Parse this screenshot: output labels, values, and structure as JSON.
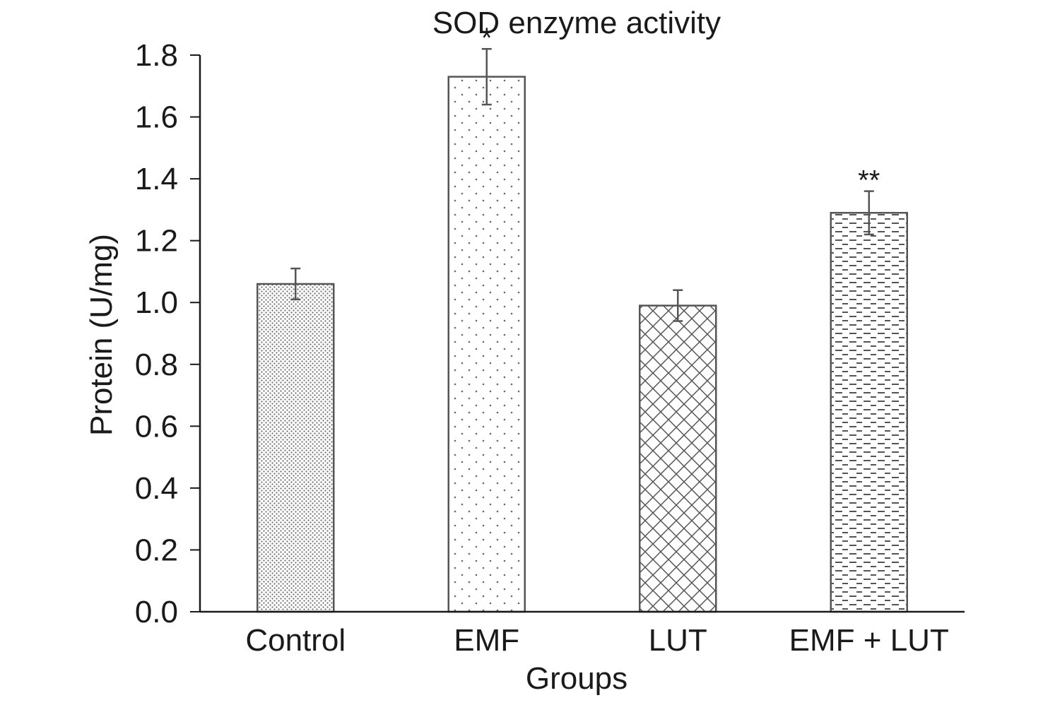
{
  "chart_data": {
    "type": "bar",
    "title": "SOD enzyme activity",
    "xlabel": "Groups",
    "ylabel": "Protein (U/mg)",
    "ylim": [
      0,
      1.8
    ],
    "yticks": [
      "0.0",
      "0.2",
      "0.4",
      "0.6",
      "0.8",
      "1.0",
      "1.2",
      "1.4",
      "1.6",
      "1.8"
    ],
    "categories": [
      "Control",
      "EMF",
      "LUT",
      "EMF + LUT"
    ],
    "values": [
      1.06,
      1.73,
      0.99,
      1.29
    ],
    "errors": [
      0.05,
      0.09,
      0.05,
      0.07
    ],
    "significance": [
      "",
      "*",
      "",
      "**"
    ],
    "patterns": [
      "fine-dots",
      "sparse-dots",
      "crosshatch",
      "dashes"
    ],
    "bar_fill": "#ffffff",
    "bar_stroke": "#555555",
    "grid": false,
    "legend": "none"
  }
}
